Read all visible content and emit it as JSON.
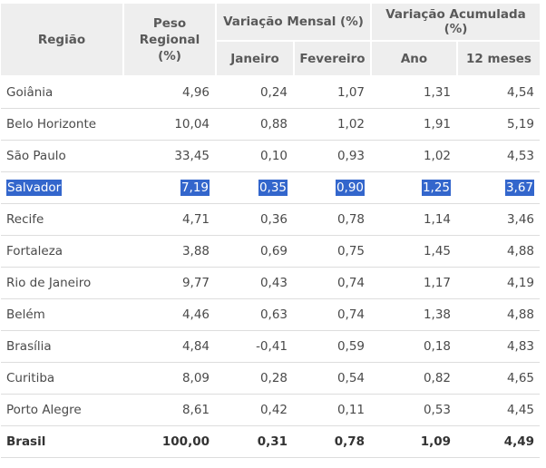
{
  "header": {
    "region": "Região",
    "weight": "Peso Regional (%)",
    "monthly": "Variação Mensal (%)",
    "accumulated": "Variação Acumulada (%)",
    "jan": "Janeiro",
    "feb": "Fevereiro",
    "year": "Ano",
    "twelve": "12 meses"
  },
  "rows": [
    {
      "name": "Goiânia",
      "weight": "4,96",
      "jan": "0,24",
      "feb": "1,07",
      "year": "1,31",
      "twelve": "4,54"
    },
    {
      "name": "Belo Horizonte",
      "weight": "10,04",
      "jan": "0,88",
      "feb": "1,02",
      "year": "1,91",
      "twelve": "5,19"
    },
    {
      "name": "São Paulo",
      "weight": "33,45",
      "jan": "0,10",
      "feb": "0,93",
      "year": "1,02",
      "twelve": "4,53"
    },
    {
      "name": "Salvador",
      "weight": "7,19",
      "jan": "0,35",
      "feb": "0,90",
      "year": "1,25",
      "twelve": "3,67"
    },
    {
      "name": "Recife",
      "weight": "4,71",
      "jan": "0,36",
      "feb": "0,78",
      "year": "1,14",
      "twelve": "3,46"
    },
    {
      "name": "Fortaleza",
      "weight": "3,88",
      "jan": "0,69",
      "feb": "0,75",
      "year": "1,45",
      "twelve": "4,88"
    },
    {
      "name": "Rio de Janeiro",
      "weight": "9,77",
      "jan": "0,43",
      "feb": "0,74",
      "year": "1,17",
      "twelve": "4,19"
    },
    {
      "name": "Belém",
      "weight": "4,46",
      "jan": "0,63",
      "feb": "0,74",
      "year": "1,38",
      "twelve": "4,88"
    },
    {
      "name": "Brasília",
      "weight": "4,84",
      "jan": "-0,41",
      "feb": "0,59",
      "year": "0,18",
      "twelve": "4,83"
    },
    {
      "name": "Curitiba",
      "weight": "8,09",
      "jan": "0,28",
      "feb": "0,54",
      "year": "0,82",
      "twelve": "4,65"
    },
    {
      "name": "Porto Alegre",
      "weight": "8,61",
      "jan": "0,42",
      "feb": "0,11",
      "year": "0,53",
      "twelve": "4,45"
    }
  ],
  "total": {
    "name": "Brasil",
    "weight": "100,00",
    "jan": "0,31",
    "feb": "0,78",
    "year": "1,09",
    "twelve": "4,49"
  },
  "selection": {
    "highlighted_row": "Salvador",
    "highlight_color": "#3366cc"
  }
}
